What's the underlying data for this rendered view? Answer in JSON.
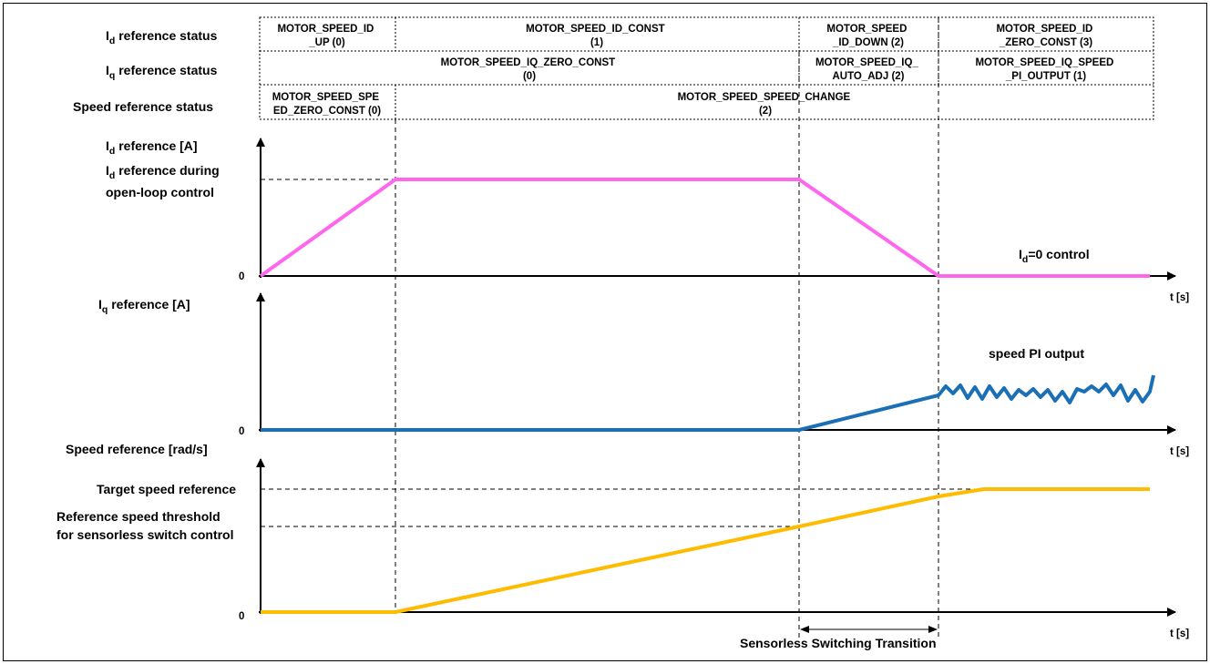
{
  "colors": {
    "id_trace": "#ff66ee",
    "iq_trace": "#1a6fb5",
    "speed_trace": "#ffbb00",
    "axis": "#000000",
    "guide": "#000000"
  },
  "status_rows": {
    "id_label": "reference status",
    "iq_label": "reference status",
    "speed_label": "Speed reference status",
    "id_cells": [
      {
        "l1": "MOTOR_SPEED_ID",
        "l2": "_UP (0)"
      },
      {
        "l1": "MOTOR_SPEED_ID_CONST",
        "l2": "(1)"
      },
      {
        "l1": "MOTOR_SPEED",
        "l2": "_ID_DOWN (2)"
      },
      {
        "l1": "MOTOR_SPEED_ID",
        "l2": "_ZERO_CONST (3)"
      }
    ],
    "iq_cells": [
      {
        "l1": "MOTOR_SPEED_IQ_ZERO_CONST",
        "l2": "(0)"
      },
      {
        "l1": "MOTOR_SPEED_IQ_",
        "l2": "AUTO_ADJ (2)"
      },
      {
        "l1": "MOTOR_SPEED_IQ_SPEED",
        "l2": "_PI_OUTPUT (1)"
      }
    ],
    "speed_cells": [
      {
        "l1": "MOTOR_SPEED_SPE",
        "l2": "ED_ZERO_CONST (0)"
      },
      {
        "l1": "MOTOR_SPEED_SPEED_CHANGE",
        "l2": "(2)"
      }
    ]
  },
  "id_plot": {
    "ylabel": "reference [A]",
    "level_label_1": "reference during",
    "level_label_2": "open-loop control",
    "zero": "0",
    "xlabel": "t [s]",
    "annotation": "=0 control"
  },
  "iq_plot": {
    "ylabel": "reference [A]",
    "zero": "0",
    "xlabel": "t [s]",
    "annotation": "speed PI output"
  },
  "speed_plot": {
    "ylabel": "Speed reference [rad/s]",
    "target_label": "Target speed reference",
    "threshold_label_1": "Reference speed threshold",
    "threshold_label_2": "for sensorless switch control",
    "zero": "0",
    "xlabel": "t [s]",
    "transition_label": "Sensorless Switching Transition"
  },
  "symbols": {
    "I": "I",
    "d": "d",
    "q": "q"
  }
}
